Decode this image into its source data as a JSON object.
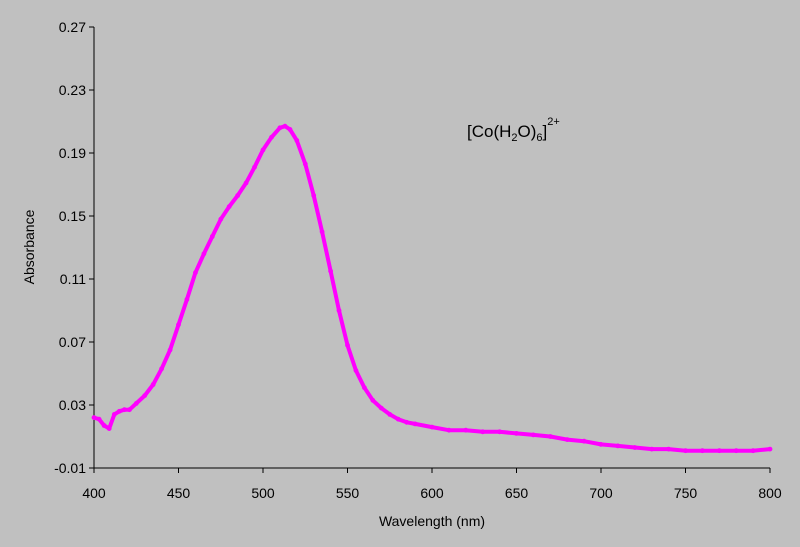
{
  "chart_data": {
    "type": "scatter",
    "title": "",
    "xlabel": "Wavelength (nm)",
    "ylabel": "Absorbance",
    "xlim": [
      400,
      800
    ],
    "ylim": [
      -0.01,
      0.27
    ],
    "x_ticks": [
      400,
      450,
      500,
      550,
      600,
      650,
      700,
      750,
      800
    ],
    "y_ticks": [
      -0.01,
      0.03,
      0.07,
      0.11,
      0.15,
      0.19,
      0.23,
      0.27
    ],
    "x_tick_labels": [
      "400",
      "450",
      "500",
      "550",
      "600",
      "650",
      "700",
      "750",
      "800"
    ],
    "y_tick_labels": [
      "-0.01",
      "0.03",
      "0.07",
      "0.11",
      "0.15",
      "0.19",
      "0.23",
      "0.27"
    ],
    "grid": false,
    "legend": "none",
    "annotation": {
      "prefix": "[Co(H",
      "sub1": "2",
      "mid": "O)",
      "sub2": "6",
      "suffix": "]",
      "sup": "2+"
    },
    "series": [
      {
        "color": "#ff00ff",
        "x": [
          400,
          403,
          406,
          409,
          412,
          415,
          418,
          421,
          425,
          430,
          435,
          440,
          445,
          450,
          455,
          460,
          465,
          470,
          475,
          480,
          485,
          490,
          495,
          500,
          505,
          510,
          513,
          516,
          520,
          525,
          530,
          535,
          540,
          545,
          550,
          555,
          560,
          565,
          570,
          575,
          580,
          585,
          590,
          600,
          610,
          620,
          630,
          640,
          650,
          660,
          670,
          680,
          690,
          700,
          710,
          720,
          730,
          740,
          750,
          760,
          770,
          780,
          790,
          800
        ],
        "y": [
          0.022,
          0.021,
          0.017,
          0.015,
          0.024,
          0.026,
          0.027,
          0.027,
          0.031,
          0.036,
          0.043,
          0.053,
          0.065,
          0.081,
          0.097,
          0.114,
          0.126,
          0.137,
          0.148,
          0.156,
          0.163,
          0.171,
          0.181,
          0.192,
          0.2,
          0.206,
          0.207,
          0.205,
          0.198,
          0.183,
          0.163,
          0.14,
          0.115,
          0.09,
          0.068,
          0.052,
          0.041,
          0.033,
          0.028,
          0.024,
          0.021,
          0.019,
          0.018,
          0.016,
          0.014,
          0.014,
          0.013,
          0.013,
          0.012,
          0.011,
          0.01,
          0.008,
          0.007,
          0.005,
          0.004,
          0.003,
          0.002,
          0.002,
          0.001,
          0.001,
          0.001,
          0.001,
          0.001,
          0.002
        ]
      }
    ]
  }
}
